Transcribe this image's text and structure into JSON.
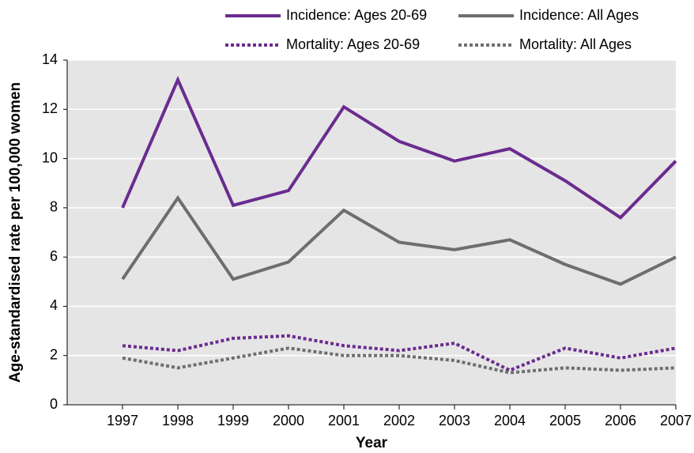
{
  "chart_data": {
    "type": "line",
    "x_label": "Year",
    "y_label": "Age-standardised rate per 100,000 women",
    "x": [
      1997,
      1998,
      1999,
      2000,
      2001,
      2002,
      2003,
      2004,
      2005,
      2006,
      2007
    ],
    "xlim": [
      1996,
      2007
    ],
    "xticks": [
      1997,
      1998,
      1999,
      2000,
      2001,
      2002,
      2003,
      2004,
      2005,
      2006,
      2007
    ],
    "ylim": [
      0,
      14
    ],
    "yticks": [
      0,
      2,
      4,
      6,
      8,
      10,
      12,
      14
    ],
    "grid": true,
    "legend": "top",
    "series": [
      {
        "name": "Incidence: Ages 20-69",
        "color": "#6a2c8f",
        "style": "solid",
        "values": [
          8.0,
          13.2,
          8.1,
          8.7,
          12.1,
          10.7,
          9.9,
          10.4,
          9.1,
          7.6,
          9.9
        ]
      },
      {
        "name": "Incidence: All Ages",
        "color": "#6d6e71",
        "style": "solid",
        "values": [
          5.1,
          8.4,
          5.1,
          5.8,
          7.9,
          6.6,
          6.3,
          6.7,
          5.7,
          4.9,
          6.0
        ]
      },
      {
        "name": "Mortality: Ages 20-69",
        "color": "#6a2c8f",
        "style": "dotted",
        "values": [
          2.4,
          2.2,
          2.7,
          2.8,
          2.4,
          2.2,
          2.5,
          1.4,
          2.3,
          1.9,
          2.3
        ]
      },
      {
        "name": "Mortality: All Ages",
        "color": "#6d6e71",
        "style": "dotted",
        "values": [
          1.9,
          1.5,
          1.9,
          2.3,
          2.0,
          2.0,
          1.8,
          1.3,
          1.5,
          1.4,
          1.5
        ]
      }
    ]
  }
}
